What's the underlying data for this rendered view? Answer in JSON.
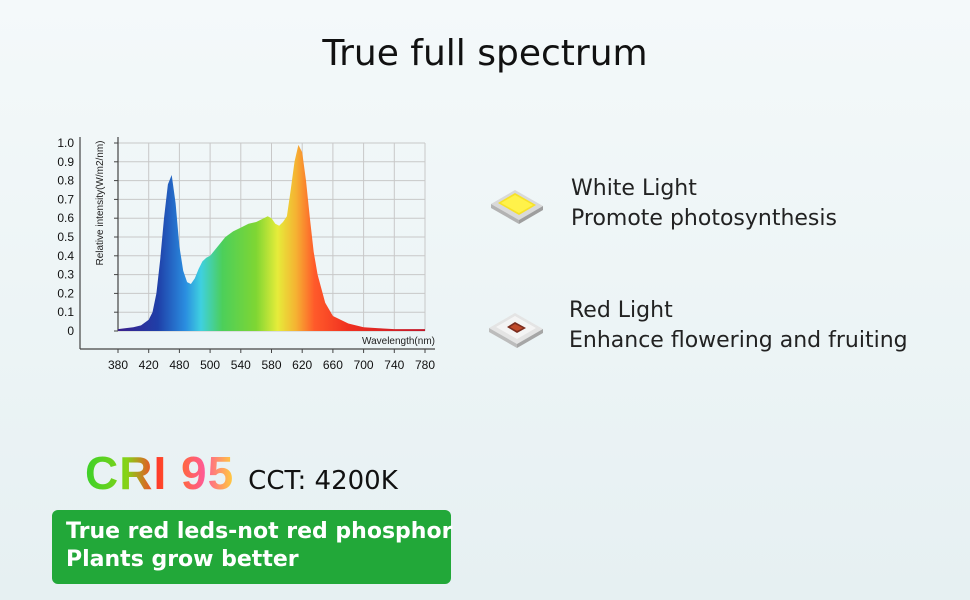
{
  "page": {
    "title": "True full spectrum"
  },
  "leds": [
    {
      "name": "White Light",
      "description": "Promote photosynthesis",
      "icon": "white-led-chip-icon"
    },
    {
      "name": "Red Light",
      "description": "Enhance flowering and fruiting",
      "icon": "red-led-chip-icon"
    }
  ],
  "cri": {
    "label": "CRI 95",
    "cct": "CCT: 4200K"
  },
  "banner": {
    "line1": "True red leds-not red phosphor",
    "line2": "Plants grow better",
    "color": "#22a839"
  },
  "chart_data": {
    "type": "area",
    "title": "",
    "xlabel": "Wavelength(nm)",
    "ylabel": "Relative intensity(W/m2/nm)",
    "xlim": [
      380,
      780
    ],
    "ylim": [
      0,
      1.0
    ],
    "x_ticks": [
      380,
      420,
      480,
      500,
      540,
      580,
      620,
      660,
      700,
      740,
      780
    ],
    "y_ticks": [
      "0",
      "0.1",
      "0.2",
      "0.3",
      "0.4",
      "0.5",
      "0.6",
      "0.7",
      "0.8",
      "0.9",
      "1.0"
    ],
    "grid": true,
    "series": [
      {
        "x": [
          380,
          400,
          410,
          420,
          425,
          430,
          435,
          440,
          445,
          450,
          455,
          460,
          465,
          470,
          475,
          480,
          485,
          490,
          495,
          500,
          510,
          520,
          530,
          540,
          550,
          560,
          570,
          575,
          580,
          585,
          590,
          595,
          600,
          605,
          610,
          615,
          620,
          625,
          630,
          635,
          640,
          650,
          660,
          680,
          700,
          720,
          740,
          760,
          780
        ],
        "y": [
          0.01,
          0.02,
          0.03,
          0.06,
          0.1,
          0.2,
          0.38,
          0.6,
          0.78,
          0.83,
          0.68,
          0.45,
          0.32,
          0.26,
          0.25,
          0.28,
          0.33,
          0.37,
          0.39,
          0.4,
          0.45,
          0.5,
          0.53,
          0.55,
          0.57,
          0.58,
          0.6,
          0.61,
          0.6,
          0.57,
          0.56,
          0.58,
          0.61,
          0.75,
          0.9,
          0.99,
          0.95,
          0.8,
          0.6,
          0.42,
          0.3,
          0.15,
          0.08,
          0.04,
          0.02,
          0.015,
          0.01,
          0.01,
          0.01
        ]
      }
    ]
  }
}
